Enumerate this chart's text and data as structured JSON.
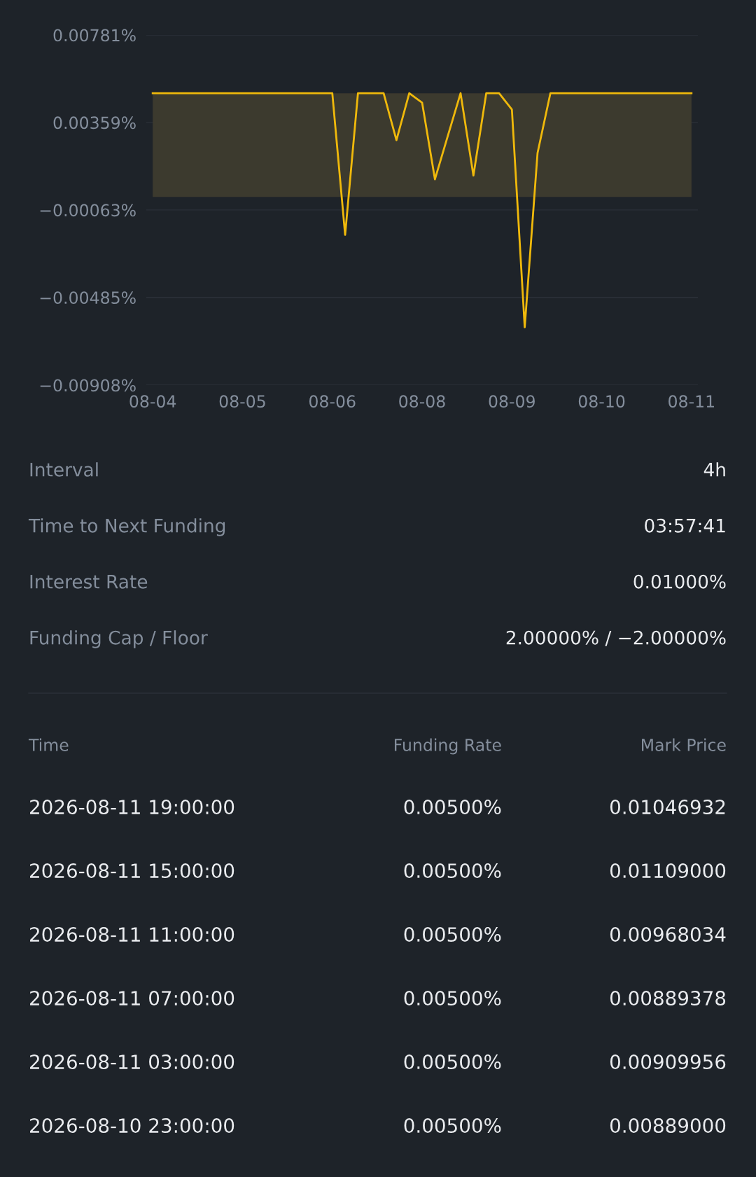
{
  "chart_data": [
    {
      "type": "line",
      "categories": [
        "08-04",
        null,
        null,
        null,
        null,
        null,
        null,
        "08-05",
        null,
        null,
        null,
        null,
        null,
        null,
        "08-06",
        null,
        null,
        null,
        null,
        null,
        null,
        "08-08",
        null,
        null,
        null,
        null,
        null,
        null,
        "08-09",
        null,
        null,
        null,
        null,
        null,
        null,
        "08-10",
        null,
        null,
        null,
        null,
        null,
        null,
        "08-11"
      ],
      "series": [
        {
          "color": "#f0b90b",
          "values": [
            0.005,
            0.005,
            0.005,
            0.005,
            0.005,
            0.005,
            0.005,
            0.005,
            0.005,
            0.005,
            0.005,
            0.005,
            0.005,
            0.005,
            0.005,
            -0.00183,
            0.005,
            0.005,
            0.005,
            0.00274,
            0.005,
            0.00455,
            0.00085,
            0.00293,
            0.005,
            0.00103,
            0.005,
            0.005,
            0.00422,
            -0.00629,
            0.00212,
            0.005,
            0.005,
            0.005,
            0.005,
            0.005,
            0.005,
            0.005,
            0.005,
            0.005,
            0.005,
            0.005,
            0.005
          ]
        }
      ],
      "ylim": [
        -0.00908,
        0.00781
      ],
      "yticks": [
        {
          "value": -0.00908,
          "label": "−0.00908%"
        },
        {
          "value": -0.00485,
          "label": "−0.00485%"
        },
        {
          "value": -0.00063,
          "label": "−0.00063%"
        },
        {
          "value": 0.00359,
          "label": "0.00359%"
        },
        {
          "value": 0.00781,
          "label": "0.00781%"
        }
      ],
      "grid": "y",
      "marker": "none",
      "line_style": "solid",
      "bands": [
        {
          "axis": "y",
          "from": 0,
          "to": 0.005,
          "color": "#3c3a2e"
        }
      ]
    },
    {
      "type": "other",
      "annotations": [
        "Interval",
        "4h",
        "Time to Next Funding",
        "03:57:41",
        "Interest Rate",
        "0.01000%",
        "Funding Cap / Floor",
        "2.00000% / −2.00000%",
        "Time",
        "Funding Rate",
        "Mark Price",
        "2026-08-11 19:00:00",
        "0.00500%",
        "0.01046932",
        "2026-08-11 15:00:00",
        "0.00500%",
        "0.01109000",
        "2026-08-11 11:00:00",
        "0.00500%",
        "0.00968034",
        "2026-08-11 07:00:00",
        "0.00500%",
        "0.00889378",
        "2026-08-11 03:00:00",
        "0.00500%",
        "0.00909956",
        "2026-08-10 23:00:00",
        "0.00500%",
        "0.00889000"
      ]
    }
  ]
}
